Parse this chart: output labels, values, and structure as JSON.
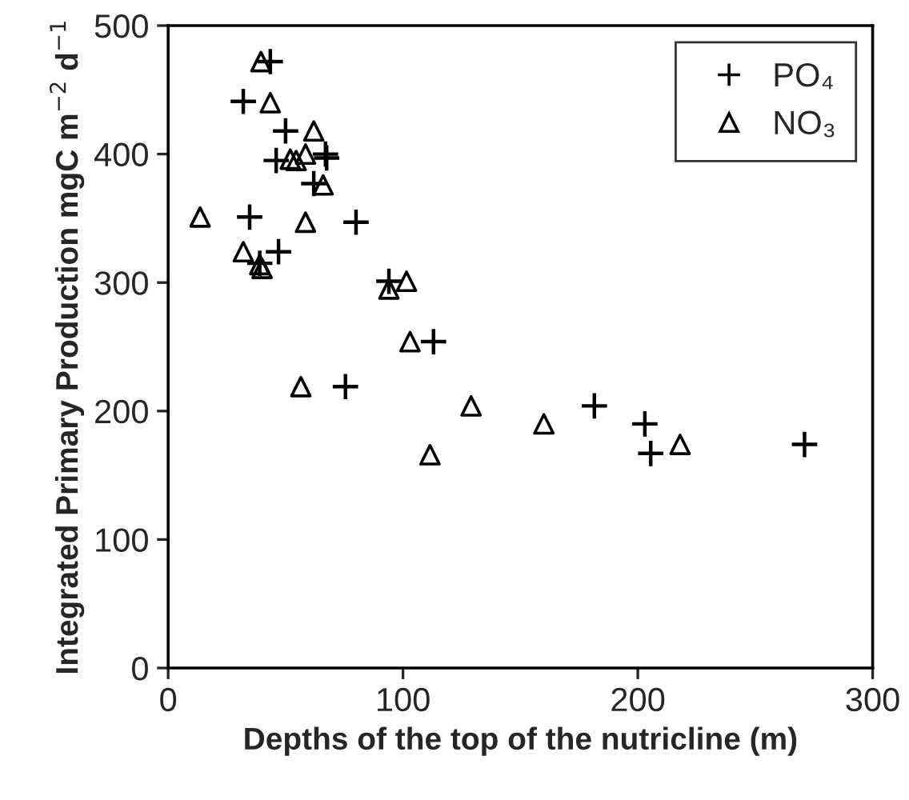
{
  "chart_data": {
    "type": "scatter",
    "xlabel": "Depths of the top of the nutricline (m)",
    "ylabel": "Integrated Primary Production mgC m$^{−2}$ d$^{−1}$",
    "xlim": [
      0,
      300
    ],
    "xticks": [
      0,
      100,
      200,
      300
    ],
    "ylim": [
      0,
      500
    ],
    "yticks": [
      0,
      100,
      200,
      300,
      400,
      500
    ],
    "grid": false,
    "legend": "top right",
    "series": [
      {
        "name": "PO₄",
        "color": "#000000",
        "marker": "cross",
        "x": [
          43.5,
          32,
          50,
          46,
          67,
          67.5,
          62,
          34.7,
          80,
          47,
          39,
          94,
          113,
          75.5,
          181.5,
          203,
          205.5,
          271
        ],
        "values": [
          472,
          441,
          418,
          395,
          400,
          397,
          377,
          351,
          347,
          324,
          315,
          301,
          254,
          219,
          204,
          190,
          167,
          174
        ]
      },
      {
        "name": "NO₃",
        "color": "#000000",
        "marker": "triangle",
        "x": [
          39.5,
          43.5,
          62,
          52,
          54.5,
          58.5,
          66,
          13.6,
          58.5,
          32,
          39,
          40,
          94,
          101.5,
          103,
          56.5,
          129,
          111.5,
          160,
          218
        ],
        "values": [
          472,
          440,
          418,
          396,
          395,
          400,
          376,
          351,
          347,
          324,
          314,
          311,
          295,
          301,
          254,
          219,
          204,
          166,
          190,
          174
        ]
      }
    ]
  }
}
